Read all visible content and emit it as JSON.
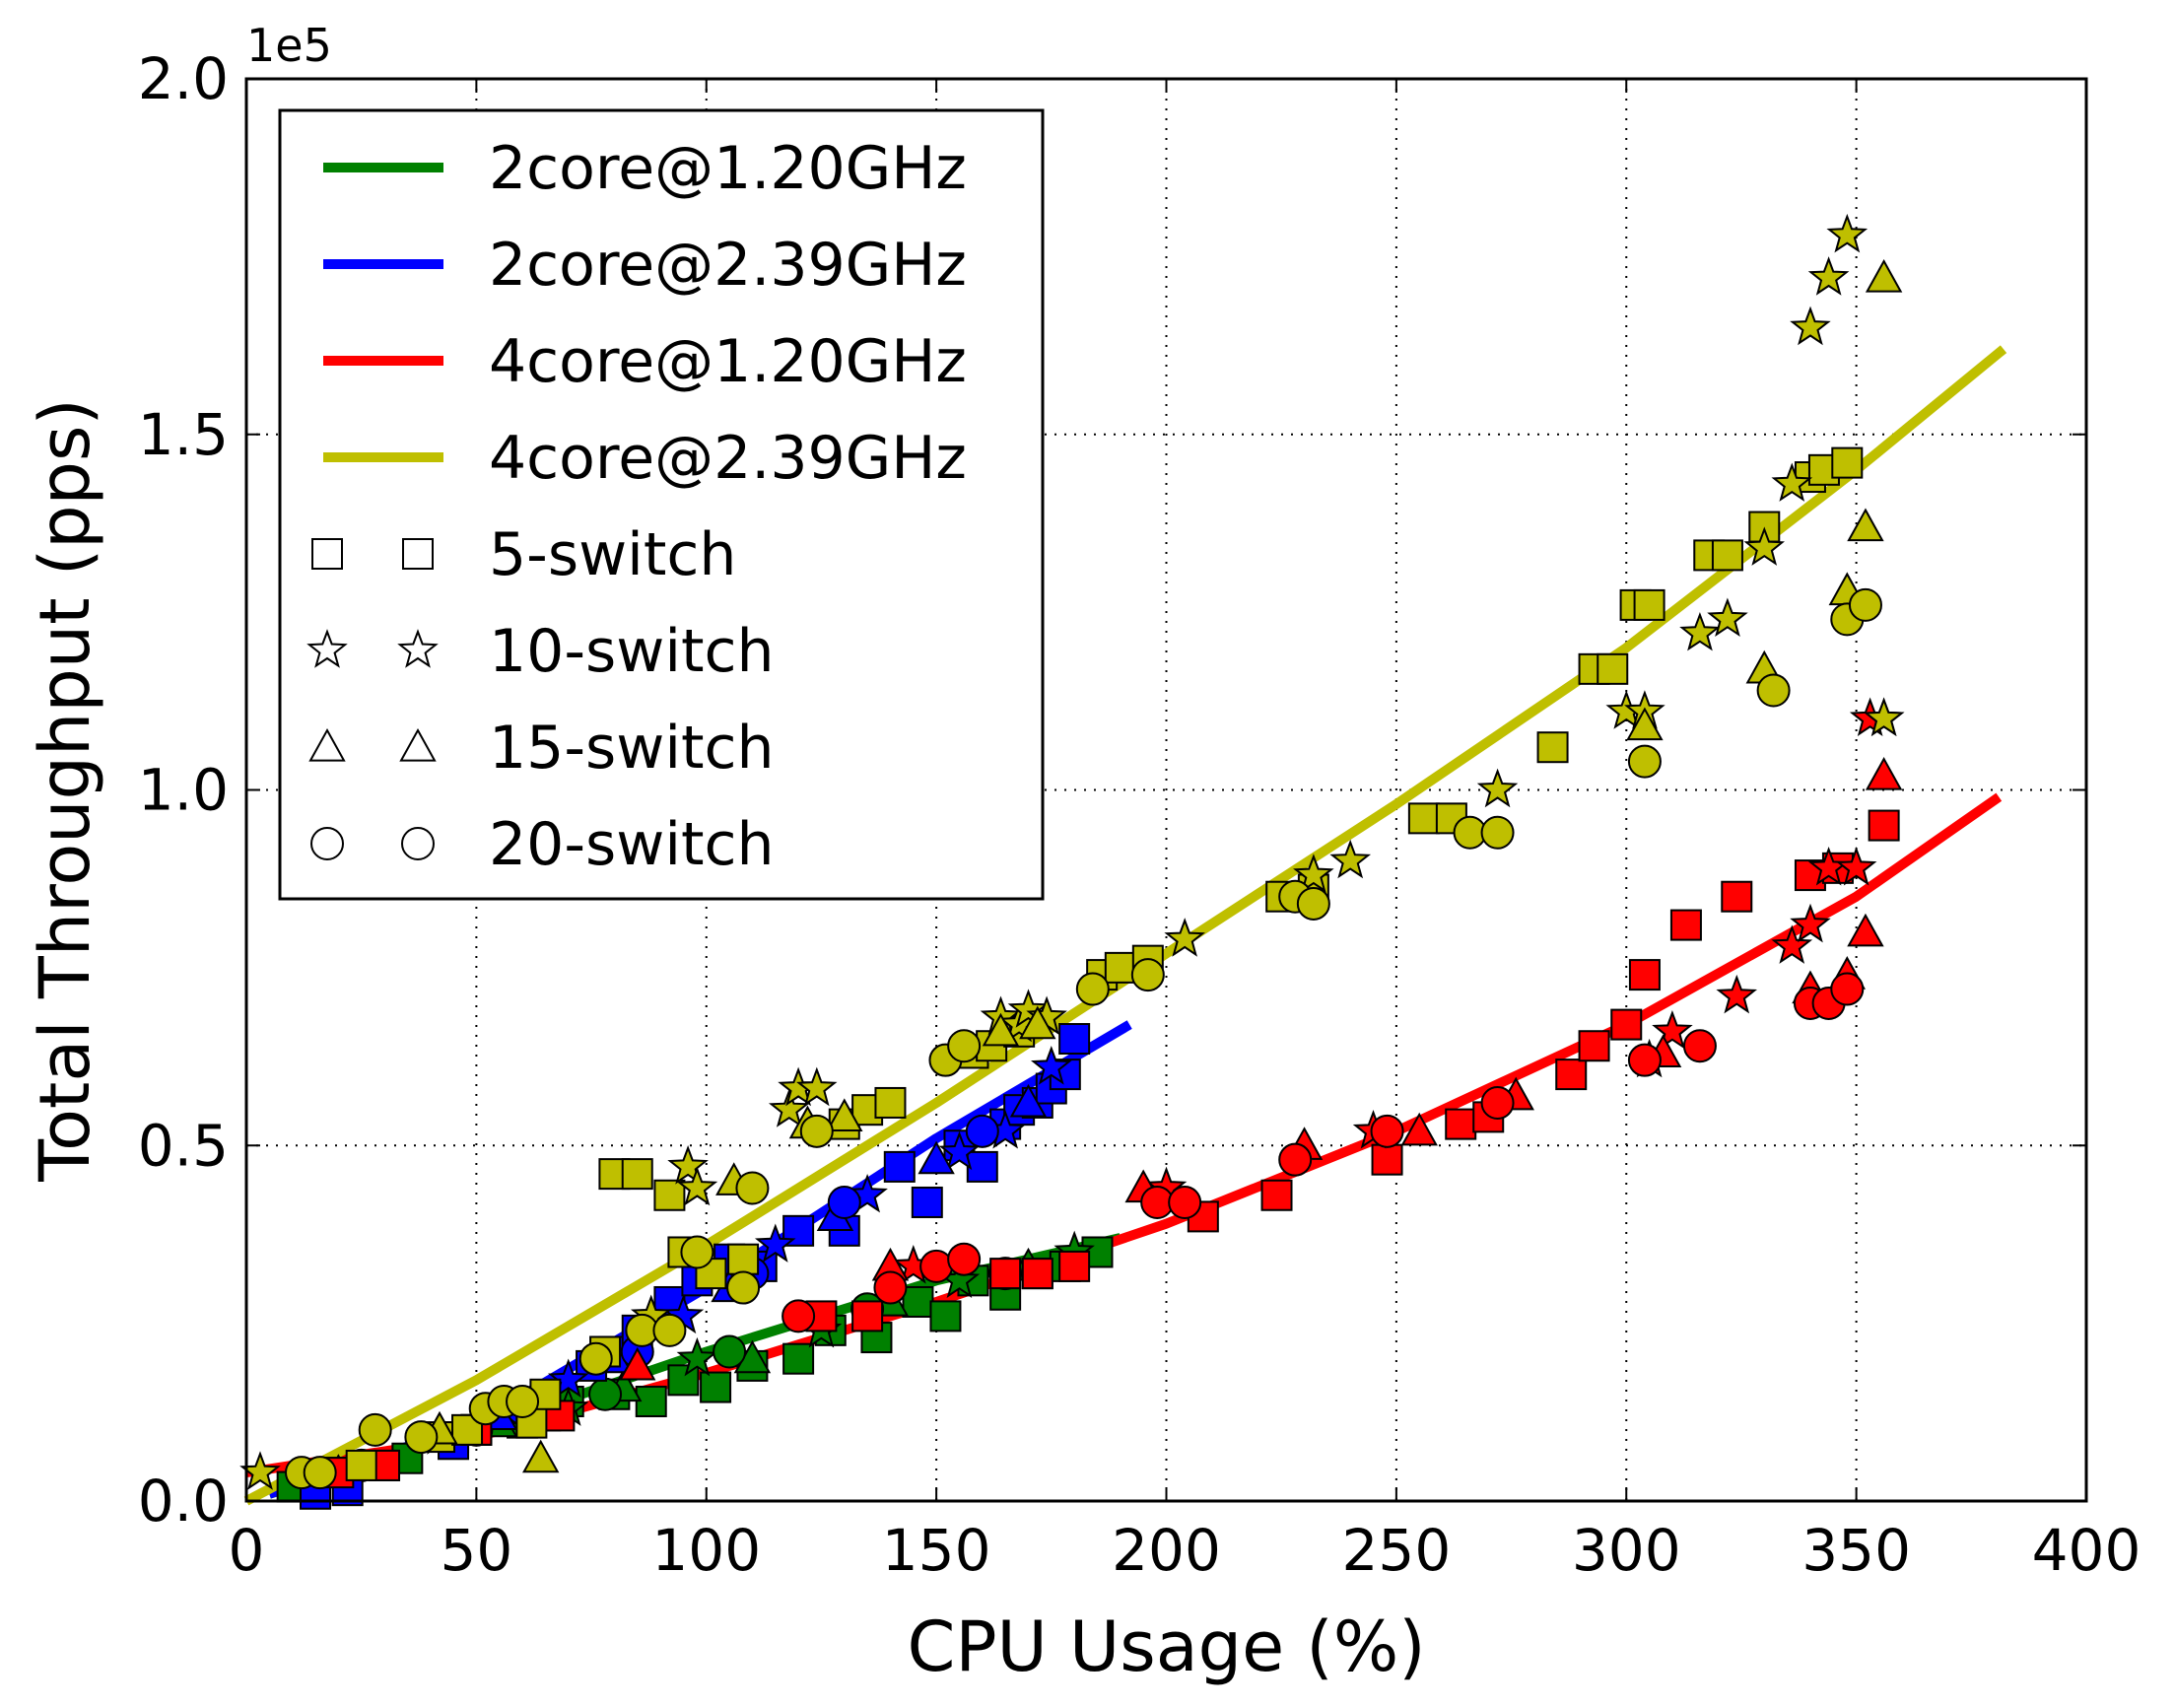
{
  "chart_data": {
    "type": "scatter",
    "xlabel": "CPU Usage (%)",
    "ylabel": "Total Throughput (pps)",
    "y_offset_label": "1e5",
    "xlim": [
      0,
      400
    ],
    "ylim": [
      0,
      200000
    ],
    "x_ticks": [
      0,
      50,
      100,
      150,
      200,
      250,
      300,
      350,
      400
    ],
    "x_tick_labels": [
      "0",
      "50",
      "100",
      "150",
      "200",
      "250",
      "300",
      "350",
      "400"
    ],
    "y_ticks": [
      0,
      50000,
      100000,
      150000,
      200000
    ],
    "y_tick_labels": [
      "0.0",
      "0.5",
      "1.0",
      "1.5",
      "2.0"
    ],
    "grid": true,
    "legend_position": "top-left",
    "colors": {
      "2core@1.20GHz": "#008000",
      "2core@2.39GHz": "#0000ff",
      "4core@1.20GHz": "#ff0000",
      "4core@2.39GHz": "#bfbf00"
    },
    "legend": {
      "series": [
        "2core@1.20GHz",
        "2core@2.39GHz",
        "4core@1.20GHz",
        "4core@2.39GHz"
      ],
      "markers": [
        {
          "label": "5-switch",
          "marker": "square"
        },
        {
          "label": "10-switch",
          "marker": "star"
        },
        {
          "label": "15-switch",
          "marker": "triangle"
        },
        {
          "label": "20-switch",
          "marker": "circle"
        }
      ]
    },
    "fit_lines": [
      {
        "name": "2core@1.20GHz",
        "x": [
          5,
          50,
          100,
          150,
          190
        ],
        "y": [
          1000,
          10000,
          21000,
          31000,
          37000
        ]
      },
      {
        "name": "2core@2.39GHz",
        "x": [
          5,
          50,
          100,
          150,
          192
        ],
        "y": [
          1000,
          11000,
          30000,
          51000,
          67000
        ]
      },
      {
        "name": "4core@1.20GHz",
        "x": [
          0,
          50,
          100,
          150,
          200,
          250,
          300,
          350,
          381
        ],
        "y": [
          4000,
          9000,
          18000,
          28000,
          39000,
          52000,
          67000,
          85000,
          99000
        ]
      },
      {
        "name": "4core@2.39GHz",
        "x": [
          0,
          50,
          100,
          150,
          200,
          250,
          300,
          350,
          382
        ],
        "y": [
          0,
          17000,
          36000,
          56000,
          77000,
          98000,
          120000,
          145000,
          162000
        ]
      }
    ],
    "points": [
      {
        "series": "2core@1.20GHz",
        "marker": "square",
        "x": [
          10,
          20,
          35,
          45,
          50,
          60,
          65,
          70,
          80,
          88,
          95,
          102,
          110,
          120,
          127,
          137,
          146,
          152,
          158,
          165,
          172,
          178,
          185
        ],
        "y": [
          2000,
          4000,
          6000,
          9000,
          10000,
          11000,
          12000,
          14000,
          15000,
          14000,
          17000,
          16000,
          19000,
          20000,
          24000,
          23000,
          28000,
          26000,
          31000,
          29000,
          32000,
          33000,
          35000
        ]
      },
      {
        "series": "2core@1.20GHz",
        "marker": "star",
        "x": [
          15,
          42,
          70,
          98,
          125,
          155,
          180
        ],
        "y": [
          3000,
          9000,
          13000,
          20000,
          24000,
          31000,
          35000
        ]
      },
      {
        "series": "2core@1.20GHz",
        "marker": "triangle",
        "x": [
          20,
          55,
          82,
          110,
          140,
          170
        ],
        "y": [
          4000,
          11000,
          16000,
          20000,
          28000,
          33000
        ]
      },
      {
        "series": "2core@1.20GHz",
        "marker": "circle",
        "x": [
          25,
          50,
          78,
          105,
          135,
          165
        ],
        "y": [
          5000,
          10000,
          15000,
          21000,
          27000,
          32000
        ]
      },
      {
        "series": "2core@2.39GHz",
        "marker": "square",
        "x": [
          15,
          22,
          30,
          45,
          50,
          60,
          65,
          75,
          80,
          85,
          92,
          98,
          105,
          112,
          120,
          130,
          142,
          148,
          155,
          160,
          165,
          168,
          172,
          175,
          178,
          180
        ],
        "y": [
          1000,
          1500,
          5000,
          8000,
          10000,
          13000,
          14000,
          19000,
          21000,
          24000,
          28000,
          31000,
          34000,
          33000,
          38000,
          38000,
          47000,
          42000,
          50000,
          47000,
          53000,
          55000,
          56000,
          58000,
          60000,
          65000
        ]
      },
      {
        "series": "2core@2.39GHz",
        "marker": "star",
        "x": [
          50,
          70,
          95,
          115,
          135,
          155,
          165,
          175
        ],
        "y": [
          11000,
          17000,
          26000,
          36000,
          43000,
          49000,
          52000,
          61000
        ]
      },
      {
        "series": "2core@2.39GHz",
        "marker": "triangle",
        "x": [
          55,
          80,
          105,
          128,
          150,
          170
        ],
        "y": [
          12000,
          20000,
          30000,
          40000,
          48000,
          56000
        ]
      },
      {
        "series": "2core@2.39GHz",
        "marker": "circle",
        "x": [
          60,
          85,
          110,
          130,
          160
        ],
        "y": [
          13000,
          21000,
          32000,
          42000,
          52000
        ]
      },
      {
        "series": "4core@1.20GHz",
        "marker": "square",
        "x": [
          20,
          30,
          50,
          62,
          68,
          125,
          135,
          165,
          172,
          180,
          208,
          224,
          248,
          264,
          270,
          288,
          293,
          300,
          304,
          313,
          324,
          340,
          346,
          356
        ],
        "y": [
          4000,
          5000,
          10000,
          12000,
          12000,
          26000,
          26000,
          32000,
          32000,
          33000,
          40000,
          43000,
          48000,
          53000,
          54000,
          60000,
          64000,
          67000,
          74000,
          81000,
          85000,
          88000,
          89000,
          95000
        ]
      },
      {
        "series": "4core@1.20GHz",
        "marker": "star",
        "x": [
          145,
          200,
          245,
          305,
          310,
          324,
          336,
          340,
          344,
          350,
          353,
          356
        ],
        "y": [
          33000,
          44000,
          52000,
          62000,
          66000,
          71000,
          78000,
          81000,
          89000,
          89000,
          110000,
          110000
        ]
      },
      {
        "series": "4core@1.20GHz",
        "marker": "triangle",
        "x": [
          85,
          140,
          195,
          230,
          255,
          276,
          308,
          340,
          348,
          352,
          356
        ],
        "y": [
          19000,
          33000,
          44000,
          50000,
          52000,
          57000,
          63000,
          72000,
          74000,
          80000,
          102000
        ]
      },
      {
        "series": "4core@1.20GHz",
        "marker": "circle",
        "x": [
          120,
          140,
          150,
          156,
          198,
          204,
          228,
          248,
          272,
          304,
          316,
          340,
          344,
          348
        ],
        "y": [
          26000,
          30000,
          33000,
          34000,
          42000,
          42000,
          48000,
          52000,
          56000,
          62000,
          64000,
          70000,
          70000,
          72000
        ]
      },
      {
        "series": "4core@2.39GHz",
        "marker": "square",
        "x": [
          25,
          42,
          48,
          62,
          65,
          78,
          80,
          85,
          92,
          95,
          101,
          108,
          130,
          135,
          140,
          158,
          162,
          168,
          186,
          190,
          196,
          225,
          232,
          256,
          262,
          284,
          293,
          297,
          302,
          305,
          318,
          322,
          330,
          340,
          343,
          348
        ],
        "y": [
          5000,
          9000,
          10000,
          11000,
          15000,
          21000,
          46000,
          46000,
          43000,
          35000,
          32000,
          34000,
          53000,
          55000,
          56000,
          63000,
          64000,
          66000,
          74000,
          75000,
          76000,
          85000,
          86000,
          96000,
          96000,
          106000,
          117000,
          117000,
          126000,
          126000,
          133000,
          133000,
          137000,
          144000,
          145000,
          146000
        ]
      },
      {
        "series": "4core@2.39GHz",
        "marker": "star",
        "x": [
          3,
          88,
          96,
          98,
          118,
          120,
          124,
          164,
          168,
          170,
          174,
          204,
          232,
          240,
          272,
          300,
          304,
          316,
          322,
          330,
          336,
          340,
          344,
          348,
          356
        ],
        "y": [
          4000,
          26000,
          47000,
          44000,
          55000,
          58000,
          58000,
          68000,
          67000,
          69000,
          68000,
          79000,
          88000,
          90000,
          100000,
          111000,
          111000,
          122000,
          124000,
          134000,
          143000,
          165000,
          172000,
          178000,
          110000
        ]
      },
      {
        "series": "4core@2.39GHz",
        "marker": "triangle",
        "x": [
          42,
          64,
          106,
          122,
          130,
          164,
          172,
          304,
          330,
          348,
          352,
          356
        ],
        "y": [
          10000,
          6000,
          45000,
          53000,
          54000,
          66000,
          67000,
          109000,
          117000,
          128000,
          137000,
          172000
        ]
      },
      {
        "series": "4core@2.39GHz",
        "marker": "circle",
        "x": [
          12,
          16,
          28,
          38,
          52,
          56,
          60,
          76,
          86,
          92,
          98,
          108,
          110,
          124,
          152,
          156,
          184,
          196,
          228,
          232,
          266,
          272,
          304,
          332,
          348,
          352
        ],
        "y": [
          4000,
          4000,
          10000,
          9000,
          13000,
          14000,
          14000,
          20000,
          24000,
          24000,
          35000,
          30000,
          44000,
          52000,
          62000,
          64000,
          72000,
          74000,
          85000,
          84000,
          94000,
          94000,
          104000,
          114000,
          124000,
          126000
        ]
      }
    ]
  }
}
